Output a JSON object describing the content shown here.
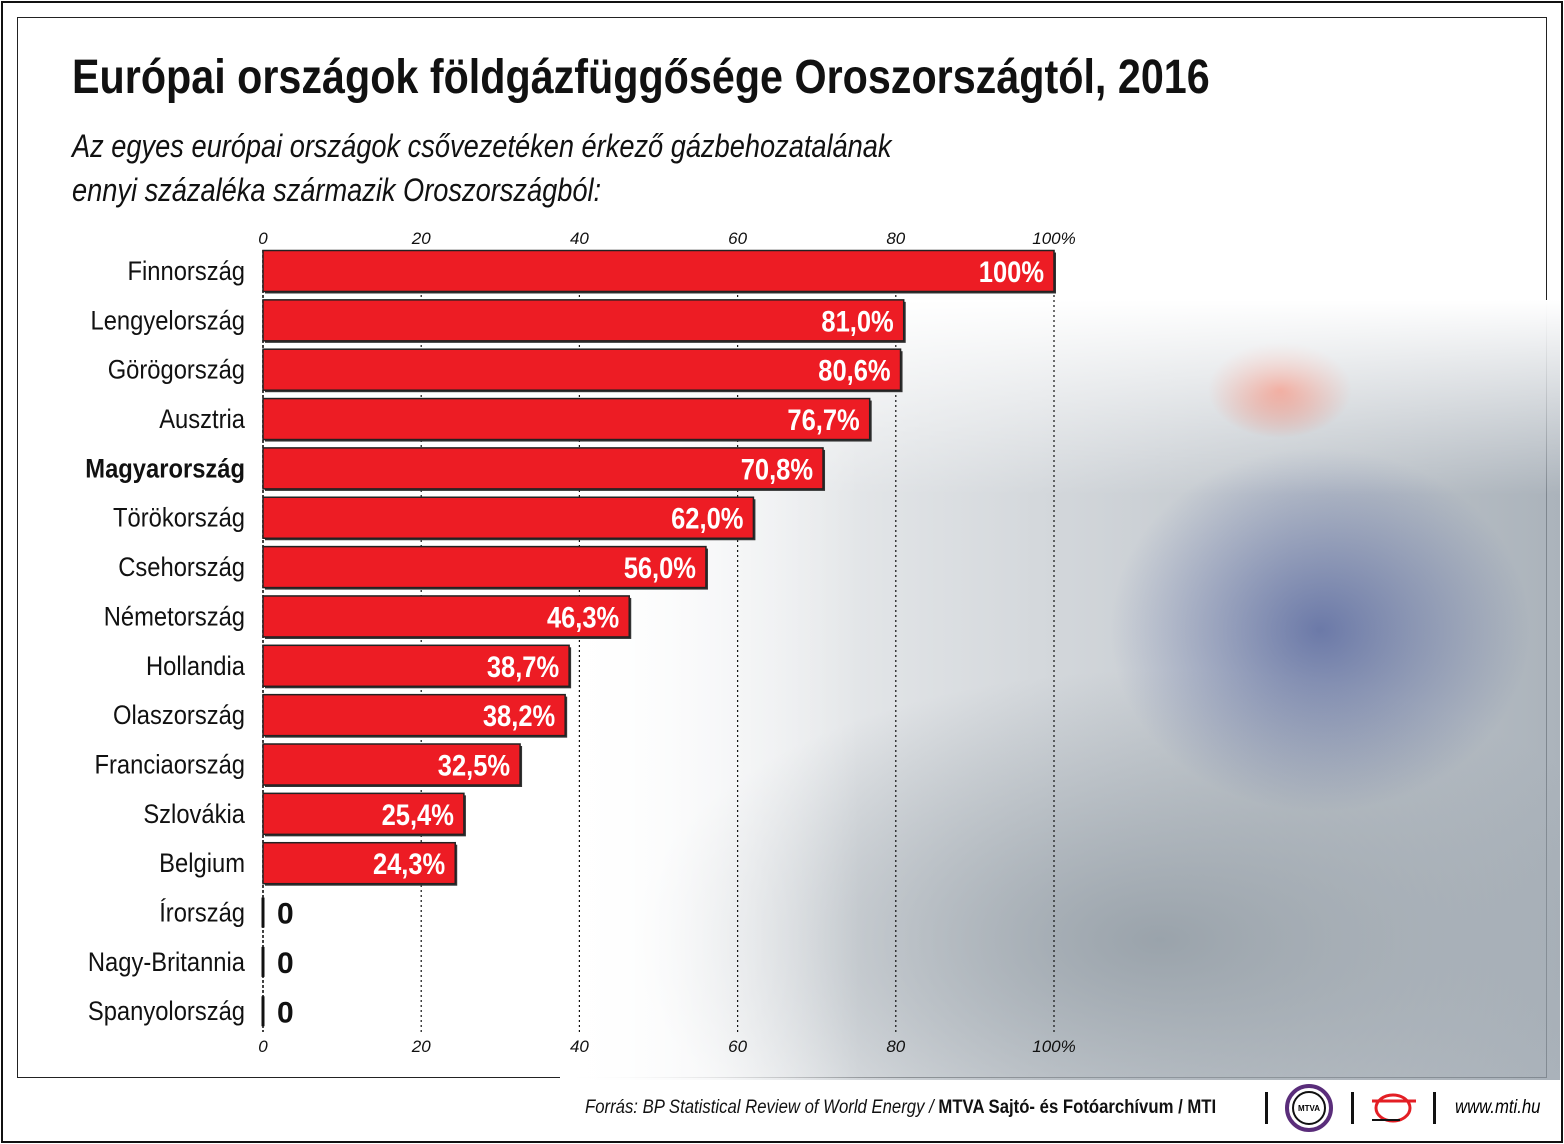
{
  "title": "Európai országok földgázfüggősége Oroszországtól, 2016",
  "subtitle_line1": "Az egyes európai országok csővezetéken érkező gázbehozatalának",
  "subtitle_line2": "ennyi százaléka származik Oroszországból:",
  "footer": {
    "source_prefix": "Forrás: BP Statistical Review of World Energy / ",
    "source_bold": "MTVA Sajtó- és Fotóarchívum / MTI",
    "logo1": "MTVA",
    "url": "www.mti.hu"
  },
  "chart_data": {
    "type": "bar",
    "orientation": "horizontal",
    "xlim": [
      0,
      100
    ],
    "ticks": [
      "0",
      "20",
      "40",
      "60",
      "80",
      "100%"
    ],
    "tick_values": [
      0,
      20,
      40,
      60,
      80,
      100
    ],
    "grid": "dotted vertical",
    "bar_color": "#ed1c24",
    "highlight_category": "Magyarország",
    "categories": [
      "Finnország",
      "Lengyelország",
      "Görögország",
      "Ausztria",
      "Magyarország",
      "Törökország",
      "Csehország",
      "Németország",
      "Hollandia",
      "Olaszország",
      "Franciaország",
      "Szlovákia",
      "Belgium",
      "Írország",
      "Nagy-Britannia",
      "Spanyolország"
    ],
    "values": [
      100,
      81.0,
      80.6,
      76.7,
      70.8,
      62.0,
      56.0,
      46.3,
      38.7,
      38.2,
      32.5,
      25.4,
      24.3,
      0,
      0,
      0
    ],
    "labels": [
      "100%",
      "81,0%",
      "80,6%",
      "76,7%",
      "70,8%",
      "62,0%",
      "56,0%",
      "46,3%",
      "38,7%",
      "38,2%",
      "32,5%",
      "25,4%",
      "24,3%",
      "0",
      "0",
      "0"
    ]
  }
}
